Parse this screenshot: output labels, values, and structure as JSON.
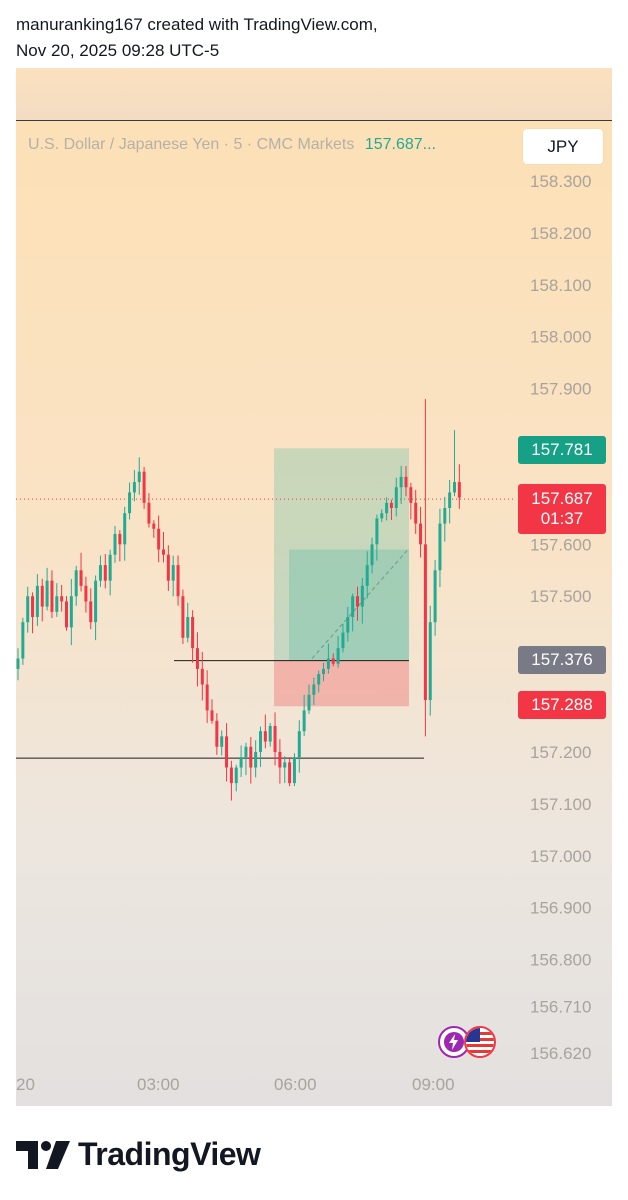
{
  "header": {
    "line1": "manuranking167 created with TradingView.com,",
    "line2": "Nov 20, 2025 09:28 UTC-5"
  },
  "symbol": {
    "title": "U.S. Dollar / Japanese Yen · 5 · CMC Markets",
    "last": "157.687..."
  },
  "currency_button": "JPY",
  "price_axis": [
    "158.300",
    "158.200",
    "158.100",
    "158.000",
    "157.900",
    "157.600",
    "157.500",
    "157.200",
    "157.100",
    "157.000",
    "156.900",
    "156.800",
    "156.710",
    "156.620"
  ],
  "time_axis": [
    "20",
    "03:00",
    "06:00",
    "09:00"
  ],
  "badges": {
    "target": {
      "value": "157.781",
      "color": "#16a085"
    },
    "current": {
      "value": "157.687",
      "countdown": "01:37",
      "color": "#f23645"
    },
    "entry": {
      "value": "157.376",
      "color": "#787b86"
    },
    "stop": {
      "value": "157.288",
      "color": "#f23645"
    }
  },
  "icons": [
    "lightning-icon",
    "us-flag-icon"
  ],
  "footer": {
    "brand": "TradingView"
  },
  "colors": {
    "up": "#22ab94",
    "down": "#f23645"
  },
  "chart_data": {
    "type": "candlestick",
    "symbol": "USDJPY",
    "interval": "5",
    "ylim": [
      156.58,
      158.35
    ],
    "profit_zone": [
      157.376,
      157.781
    ],
    "loss_zone": [
      157.288,
      157.376
    ],
    "support_level": 157.188,
    "entry_level": 157.376,
    "current_price": 157.687,
    "closes": [
      157.38,
      157.45,
      157.5,
      157.46,
      157.52,
      157.48,
      157.53,
      157.47,
      157.5,
      157.49,
      157.44,
      157.5,
      157.55,
      157.52,
      157.49,
      157.45,
      157.53,
      157.56,
      157.53,
      157.58,
      157.62,
      157.6,
      157.66,
      157.7,
      157.72,
      157.74,
      157.68,
      157.64,
      157.63,
      157.59,
      157.58,
      157.53,
      157.56,
      157.5,
      157.42,
      157.46,
      157.4,
      157.36,
      157.33,
      157.28,
      157.26,
      157.21,
      157.23,
      157.17,
      157.14,
      157.17,
      157.19,
      157.21,
      157.17,
      157.2,
      157.24,
      157.22,
      157.25,
      157.2,
      157.17,
      157.18,
      157.14,
      157.19,
      157.24,
      157.28,
      157.31,
      157.33,
      157.35,
      157.36,
      157.38,
      157.37,
      157.4,
      157.43,
      157.46,
      157.5,
      157.48,
      157.52,
      157.56,
      157.6,
      157.65,
      157.66,
      157.68,
      157.67,
      157.71,
      157.73,
      157.71,
      157.68,
      157.64,
      157.6,
      157.3,
      157.45,
      157.55,
      157.64,
      157.67,
      157.7,
      157.72,
      157.69
    ]
  }
}
